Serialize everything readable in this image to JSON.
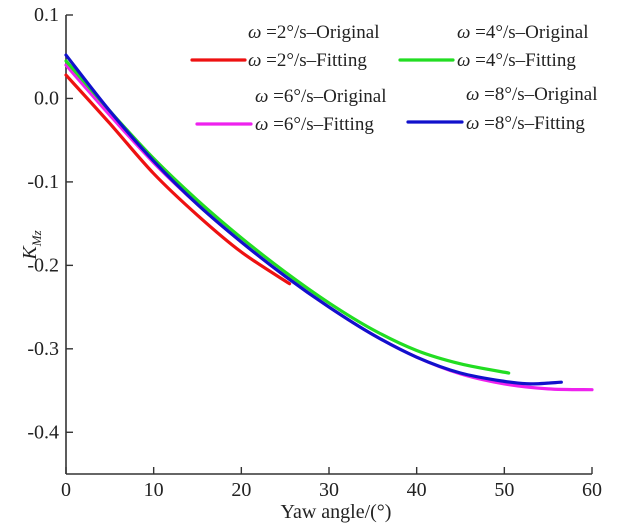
{
  "chart_data": {
    "type": "line",
    "title": "",
    "xlabel": "Yaw angle/(°)",
    "ylabel": {
      "main": "K",
      "sub": "Mz"
    },
    "xlim": [
      0,
      60
    ],
    "ylim": [
      -0.45,
      0.1
    ],
    "xticks": [
      0,
      10,
      20,
      30,
      40,
      50,
      60
    ],
    "xtick_labels": [
      "0",
      "10",
      "20",
      "30",
      "40",
      "50",
      "60"
    ],
    "yticks": [
      0.1,
      0.0,
      -0.1,
      -0.2,
      -0.3,
      -0.4
    ],
    "ytick_labels": [
      "0.1",
      "0.0",
      "-0.1",
      "-0.2",
      "-0.3",
      "-0.4"
    ],
    "grid": false,
    "legend_position": "top-right",
    "legend": [
      {
        "symbol": "ω",
        "text": " =2°/s–Original",
        "kind": "original"
      },
      {
        "symbol": "ω",
        "text": " =4°/s–Original",
        "kind": "original"
      },
      {
        "symbol": "ω",
        "text": " =2°/s–Fitting",
        "kind": "fitting",
        "color": "#ee1111"
      },
      {
        "symbol": "ω",
        "text": " =4°/s–Fitting",
        "kind": "fitting",
        "color": "#22dd22"
      },
      {
        "symbol": "ω",
        "text": " =6°/s–Original",
        "kind": "original"
      },
      {
        "symbol": "ω",
        "text": " =8°/s–Original",
        "kind": "original"
      },
      {
        "symbol": "ω",
        "text": " =6°/s–Fitting",
        "kind": "fitting",
        "color": "#ee22ee"
      },
      {
        "symbol": "ω",
        "text": " =8°/s–Fitting",
        "kind": "fitting",
        "color": "#1111cc"
      }
    ],
    "series": [
      {
        "color": "#ee22ee",
        "x": [
          0,
          5,
          10,
          15,
          20,
          25,
          30,
          35,
          40,
          45,
          50,
          55,
          60
        ],
        "y": [
          0.04,
          -0.02,
          -0.077,
          -0.127,
          -0.172,
          -0.213,
          -0.25,
          -0.283,
          -0.31,
          -0.33,
          -0.342,
          -0.348,
          -0.349
        ]
      },
      {
        "color": "#22dd22",
        "x": [
          0,
          5,
          10,
          15,
          20,
          25,
          30,
          35,
          40,
          45,
          50.5
        ],
        "y": [
          0.045,
          -0.015,
          -0.072,
          -0.122,
          -0.167,
          -0.208,
          -0.245,
          -0.277,
          -0.302,
          -0.318,
          -0.329
        ]
      },
      {
        "color": "#1111cc",
        "x": [
          0,
          5,
          10,
          15,
          20,
          25,
          30,
          35,
          40,
          45,
          50,
          53,
          56.5
        ],
        "y": [
          0.052,
          -0.015,
          -0.075,
          -0.127,
          -0.172,
          -0.213,
          -0.25,
          -0.283,
          -0.31,
          -0.329,
          -0.339,
          -0.342,
          -0.34
        ]
      },
      {
        "color": "#ee1111",
        "x": [
          0,
          5,
          10,
          15,
          20,
          25.5
        ],
        "y": [
          0.028,
          -0.03,
          -0.09,
          -0.14,
          -0.184,
          -0.222
        ]
      }
    ]
  }
}
